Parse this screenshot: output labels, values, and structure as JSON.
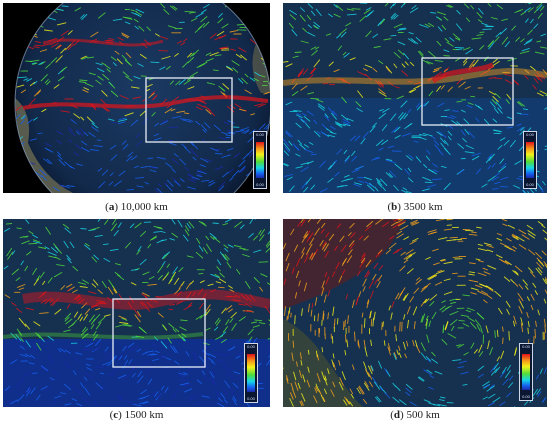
{
  "figure": {
    "panels": [
      {
        "letter": "a",
        "scale": "10,000 km",
        "colorbar": {
          "max": "0.00",
          "min": "0.00"
        }
      },
      {
        "letter": "b",
        "scale": "3500 km",
        "colorbar": {
          "max": "0.00",
          "min": "0.00"
        }
      },
      {
        "letter": "c",
        "scale": "1500 km",
        "colorbar": {
          "max": "0.00",
          "min": "0.00"
        }
      },
      {
        "letter": "d",
        "scale": "500 km",
        "colorbar": {
          "max": "0.00",
          "min": "0.00"
        }
      }
    ],
    "colormap": [
      "#1b2aa8",
      "#1660f0",
      "#17d6e6",
      "#4fdc3a",
      "#f2f21a",
      "#f6a21a",
      "#e0141a"
    ]
  }
}
